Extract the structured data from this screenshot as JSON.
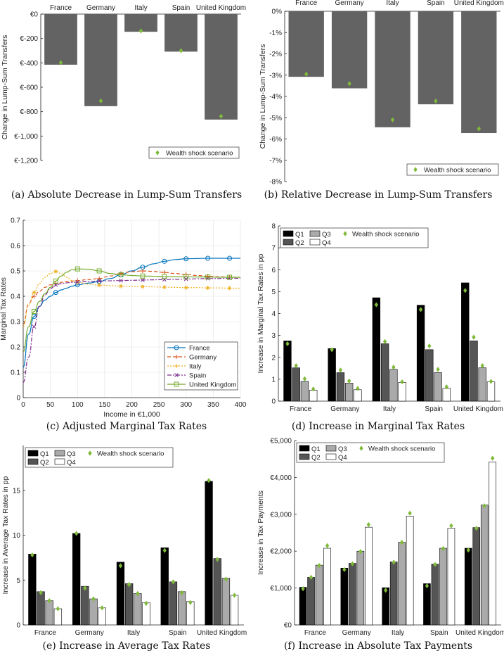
{
  "chart_data": [
    {
      "type": "bar",
      "caption": "(a)  Absolute Decrease in Lump-Sum Transfers",
      "categories": [
        "France",
        "Germany",
        "Italy",
        "Spain",
        "United Kingdom"
      ],
      "values": [
        -415,
        -755,
        -145,
        -308,
        -865
      ],
      "markers": [
        -398,
        -712,
        -138,
        -300,
        -837
      ],
      "marker_label": "Wealth shock scenario",
      "ylabel": "Change in Lump-Sum Transfers",
      "ylim": [
        -1200,
        0
      ],
      "yticks": [
        "€0",
        "€-200",
        "€-400",
        "€-600",
        "€-800",
        "€-1,000",
        "€-1,200"
      ],
      "legend_position": "bottom-right",
      "colors": {
        "bar": "#636363",
        "marker": "#7fba3a"
      }
    },
    {
      "type": "bar",
      "caption": "(b)  Relative Decrease in Lump-Sum Transfers",
      "categories": [
        "France",
        "Germany",
        "Italy",
        "Spain",
        "United Kingdom"
      ],
      "values": [
        -3.08,
        -3.62,
        -5.45,
        -4.37,
        -5.72
      ],
      "markers": [
        -2.95,
        -3.4,
        -5.1,
        -4.22,
        -5.52
      ],
      "marker_label": "Wealth shock scenario",
      "ylabel": "Change in Lump-Sum Transfers",
      "ylim": [
        -8,
        0
      ],
      "yticks": [
        "0%",
        "-1%",
        "-2%",
        "-3%",
        "-4%",
        "-5%",
        "-6%",
        "-7%",
        "-8%"
      ],
      "legend_position": "bottom-right",
      "colors": {
        "bar": "#636363",
        "marker": "#7fba3a"
      }
    },
    {
      "type": "line",
      "caption": "(c)  Adjusted Marginal Tax Rates",
      "xlabel": "Income in €1,000",
      "ylabel": "Marginal Tax Rates",
      "xlim": [
        0,
        400
      ],
      "ylim": [
        0,
        0.7
      ],
      "xticks": [
        "0",
        "50",
        "100",
        "150",
        "200",
        "250",
        "300",
        "350",
        "400"
      ],
      "yticks": [
        "0",
        "0.1",
        "0.2",
        "0.3",
        "0.4",
        "0.5",
        "0.6",
        "0.7"
      ],
      "x": [
        0,
        10,
        20,
        30,
        40,
        50,
        60,
        70,
        80,
        90,
        100,
        120,
        140,
        160,
        180,
        200,
        220,
        240,
        260,
        280,
        300,
        320,
        340,
        360,
        380,
        400
      ],
      "series": [
        {
          "name": "France",
          "color": "#0072bd",
          "dash": "",
          "marker": "circle",
          "values": [
            0.12,
            0.25,
            0.32,
            0.36,
            0.385,
            0.4,
            0.415,
            0.425,
            0.432,
            0.44,
            0.445,
            0.452,
            0.458,
            0.47,
            0.485,
            0.5,
            0.515,
            0.528,
            0.538,
            0.545,
            0.548,
            0.549,
            0.55,
            0.55,
            0.55,
            0.55
          ]
        },
        {
          "name": "Germany",
          "color": "#d95319",
          "dash": "5,3",
          "marker": "plus",
          "values": [
            0.29,
            0.37,
            0.4,
            0.42,
            0.435,
            0.445,
            0.45,
            0.455,
            0.458,
            0.46,
            0.462,
            0.466,
            0.47,
            0.48,
            0.49,
            0.497,
            0.5,
            0.498,
            0.494,
            0.49,
            0.486,
            0.482,
            0.479,
            0.477,
            0.476,
            0.475
          ]
        },
        {
          "name": "Italy",
          "color": "#edb120",
          "dash": "2,2",
          "marker": "star",
          "values": [
            0.28,
            0.365,
            0.415,
            0.45,
            0.475,
            0.49,
            0.498,
            0.49,
            0.475,
            0.462,
            0.455,
            0.448,
            0.444,
            0.442,
            0.44,
            0.439,
            0.438,
            0.437,
            0.436,
            0.435,
            0.434,
            0.434,
            0.433,
            0.433,
            0.432,
            0.432
          ]
        },
        {
          "name": "Spain",
          "color": "#7e2f8e",
          "dash": "6,2,2,2",
          "marker": "x",
          "values": [
            0.06,
            0.16,
            0.28,
            0.36,
            0.405,
            0.43,
            0.445,
            0.45,
            0.453,
            0.455,
            0.456,
            0.458,
            0.46,
            0.461,
            0.462,
            0.463,
            0.464,
            0.465,
            0.466,
            0.467,
            0.468,
            0.469,
            0.47,
            0.47,
            0.471,
            0.471
          ]
        },
        {
          "name": "United Kingdom",
          "color": "#77ac30",
          "dash": "",
          "marker": "square",
          "values": [
            0.18,
            0.28,
            0.34,
            0.38,
            0.41,
            0.435,
            0.46,
            0.48,
            0.495,
            0.505,
            0.508,
            0.507,
            0.5,
            0.49,
            0.485,
            0.482,
            0.48,
            0.479,
            0.478,
            0.477,
            0.477,
            0.476,
            0.476,
            0.475,
            0.475,
            0.475
          ]
        }
      ],
      "legend_position": "bottom-right"
    },
    {
      "type": "bar",
      "caption": "(d)  Increase in Marginal Tax Rates",
      "categories": [
        "France",
        "Germany",
        "Italy",
        "Spain",
        "United Kingdom"
      ],
      "series": [
        {
          "name": "Q1",
          "color": "#000000",
          "values": [
            2.75,
            2.4,
            4.72,
            4.38,
            5.4
          ],
          "markers": [
            2.62,
            2.35,
            4.4,
            4.18,
            5.05
          ]
        },
        {
          "name": "Q2",
          "color": "#555555",
          "values": [
            1.52,
            1.3,
            2.62,
            2.35,
            2.75
          ],
          "markers": [
            1.62,
            1.42,
            2.72,
            2.52,
            2.92
          ]
        },
        {
          "name": "Q3",
          "color": "#aaaaaa",
          "values": [
            0.9,
            0.82,
            1.45,
            1.3,
            1.52
          ],
          "markers": [
            1.02,
            0.92,
            1.55,
            1.45,
            1.62
          ]
        },
        {
          "name": "Q4",
          "color": "#ffffff",
          "values": [
            0.5,
            0.52,
            0.85,
            0.58,
            0.88
          ],
          "markers": [
            0.55,
            0.58,
            0.88,
            0.65,
            0.9
          ]
        }
      ],
      "marker_label": "Wealth shock scenario",
      "ylabel": "Increase in Marginal Tax Rates in pp",
      "ylim": [
        0,
        8
      ],
      "yticks": [
        "0",
        "1",
        "2",
        "3",
        "4",
        "5",
        "6",
        "7",
        "8"
      ],
      "legend_position": "top-left",
      "colors": {
        "marker": "#7fba3a"
      }
    },
    {
      "type": "bar",
      "caption": "(e)  Increase in Average Tax Rates",
      "categories": [
        "France",
        "Germany",
        "Italy",
        "Spain",
        "United Kingdom"
      ],
      "series": [
        {
          "name": "Q1",
          "color": "#000000",
          "values": [
            7.9,
            10.2,
            7.0,
            8.6,
            16.0
          ],
          "markers": [
            7.8,
            10.2,
            6.6,
            8.3,
            16.1
          ]
        },
        {
          "name": "Q2",
          "color": "#555555",
          "values": [
            3.7,
            4.3,
            4.6,
            4.8,
            7.4
          ],
          "markers": [
            3.6,
            4.1,
            4.5,
            4.8,
            7.3
          ]
        },
        {
          "name": "Q3",
          "color": "#aaaaaa",
          "values": [
            2.7,
            2.9,
            3.5,
            3.7,
            5.2
          ],
          "markers": [
            2.7,
            2.9,
            3.5,
            3.6,
            5.1
          ]
        },
        {
          "name": "Q4",
          "color": "#ffffff",
          "values": [
            1.8,
            1.9,
            2.5,
            2.6,
            3.3
          ],
          "markers": [
            1.8,
            1.9,
            2.4,
            2.5,
            3.3
          ]
        }
      ],
      "marker_label": "Wealth shock scenario",
      "ylabel": "Increase in Average Tax Rates in pp",
      "ylim": [
        0,
        20
      ],
      "yticks": [
        "0",
        "5",
        "10",
        "15"
      ],
      "legend_position": "top-left",
      "colors": {
        "marker": "#7fba3a"
      }
    },
    {
      "type": "bar",
      "caption": "(f)  Increase in Absolute Tax Payments",
      "categories": [
        "France",
        "Germany",
        "Italy",
        "Spain",
        "United Kingdom"
      ],
      "series": [
        {
          "name": "Q1",
          "color": "#000000",
          "values": [
            1020,
            1540,
            1010,
            1120,
            2080
          ],
          "markers": [
            980,
            1500,
            940,
            1060,
            2030
          ]
        },
        {
          "name": "Q2",
          "color": "#555555",
          "values": [
            1290,
            1670,
            1710,
            1650,
            2640
          ],
          "markers": [
            1290,
            1660,
            1700,
            1640,
            2620
          ]
        },
        {
          "name": "Q3",
          "color": "#aaaaaa",
          "values": [
            1620,
            2000,
            2240,
            2080,
            3250
          ],
          "markers": [
            1610,
            1990,
            2240,
            2070,
            3230
          ]
        },
        {
          "name": "Q4",
          "color": "#ffffff",
          "values": [
            2080,
            2650,
            2950,
            2620,
            4420
          ],
          "markers": [
            2150,
            2720,
            3030,
            2690,
            4520
          ]
        }
      ],
      "marker_label": "Wealth shock scenario",
      "ylabel": "Increase in Tax Payments",
      "ylim": [
        0,
        5000
      ],
      "yticks": [
        "€0",
        "€1,000",
        "€2,000",
        "€3,000",
        "€4,000",
        "€5,000"
      ],
      "legend_position": "top-left",
      "colors": {
        "marker": "#7fba3a"
      }
    }
  ]
}
